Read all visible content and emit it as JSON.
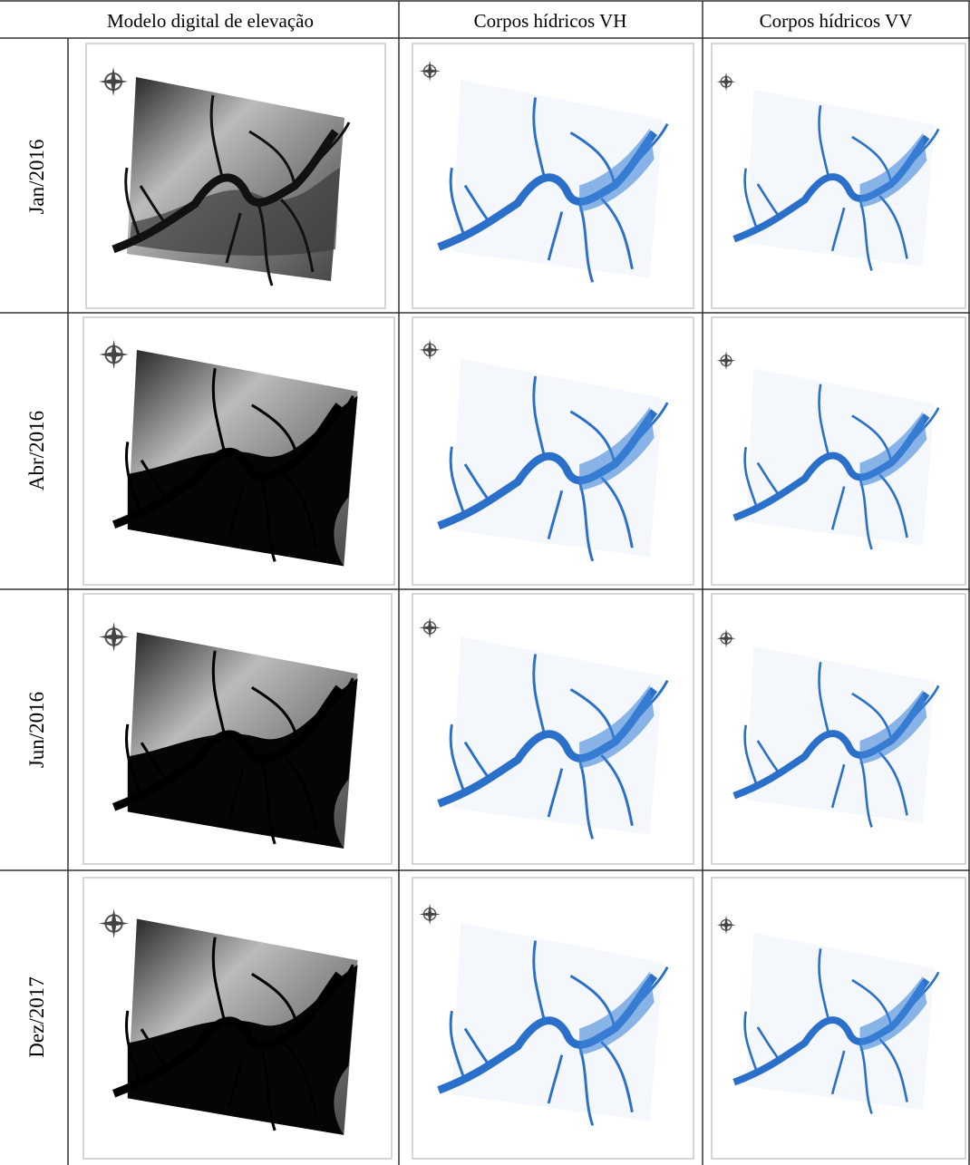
{
  "table": {
    "header": [
      "Modelo digital de elevação",
      "Corpos hídricos VH",
      "Corpos hídricos VV"
    ],
    "rows": [
      "Jan/2016",
      "Abr/2016",
      "Jun/2016",
      "Dez/2017"
    ]
  }
}
